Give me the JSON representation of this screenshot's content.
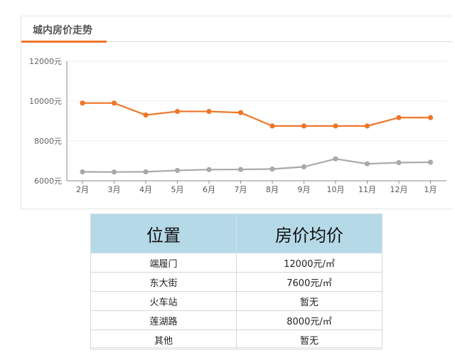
{
  "chart_title": "城内房价走势",
  "chart_data": {
    "type": "line",
    "categories": [
      "2月",
      "3月",
      "4月",
      "5月",
      "6月",
      "7月",
      "8月",
      "9月",
      "10月",
      "11月",
      "12月",
      "1月"
    ],
    "y_tick_labels": [
      "12000元",
      "10000元",
      "8000元",
      "6000元"
    ],
    "y_ticks": [
      12000,
      10000,
      8000,
      6000
    ],
    "ylim": [
      6000,
      12000
    ],
    "series": [
      {
        "color": "#f07628",
        "values": [
          9900,
          9900,
          9300,
          9480,
          9480,
          9420,
          8750,
          8750,
          8750,
          8750,
          9170,
          9170
        ]
      },
      {
        "color": "#a9a9a9",
        "values": [
          6450,
          6440,
          6450,
          6520,
          6560,
          6570,
          6590,
          6700,
          7100,
          6850,
          6910,
          6930
        ]
      }
    ],
    "legend": "none",
    "grid": true
  },
  "table": {
    "headers": [
      "位置",
      "房价均价"
    ],
    "rows": [
      [
        "端履门",
        "12000元/㎡"
      ],
      [
        "东大街",
        "7600元/㎡"
      ],
      [
        "火车站",
        "暂无"
      ],
      [
        "莲湖路",
        "8000元/㎡"
      ],
      [
        "其他",
        "暂无"
      ]
    ]
  }
}
